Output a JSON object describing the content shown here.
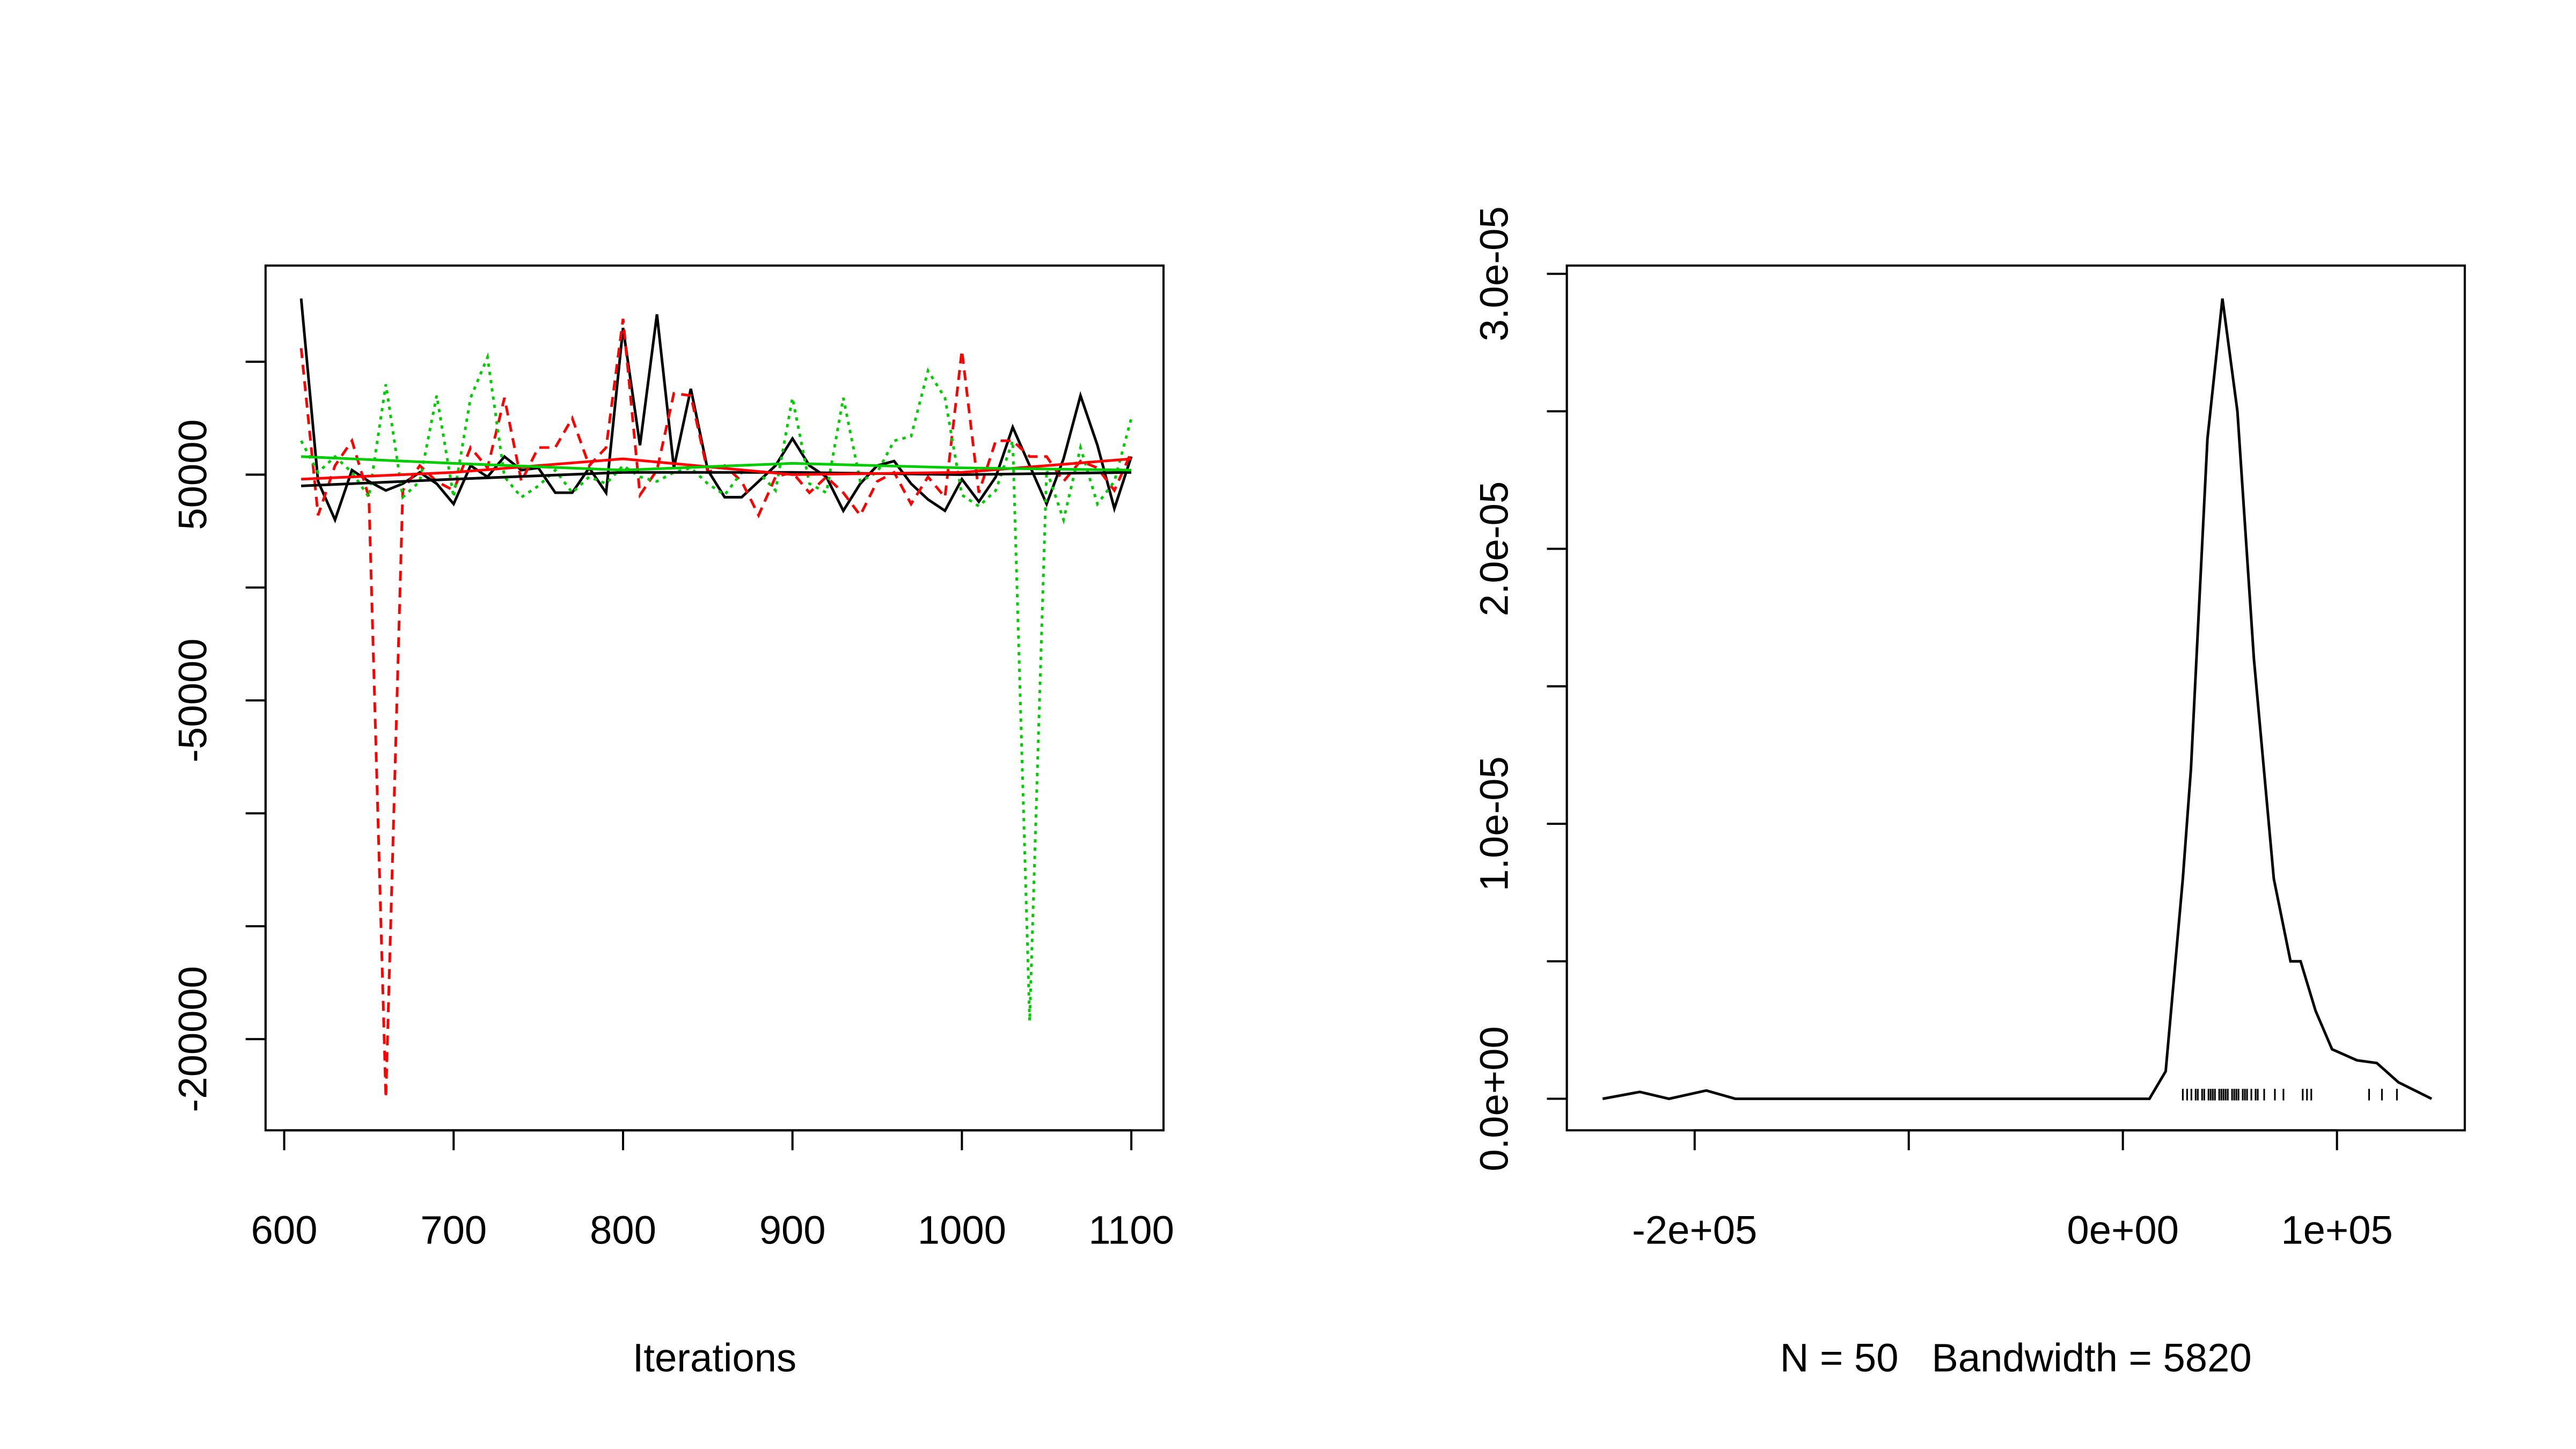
{
  "chart_data": [
    {
      "type": "line",
      "xlabel": "Iterations",
      "x": [
        610,
        620,
        630,
        640,
        650,
        660,
        670,
        680,
        690,
        700,
        710,
        720,
        730,
        740,
        750,
        760,
        770,
        780,
        790,
        800,
        810,
        820,
        830,
        840,
        850,
        860,
        870,
        880,
        890,
        900,
        910,
        920,
        930,
        940,
        950,
        960,
        970,
        980,
        990,
        1000,
        1010,
        1020,
        1030,
        1040,
        1050,
        1060,
        1070,
        1080,
        1090,
        1100
      ],
      "xlim": [
        589,
        1119
      ],
      "xticks": [
        600,
        700,
        800,
        900,
        1000,
        1100
      ],
      "ylim": [
        -240400,
        142600
      ],
      "yticks": [
        {
          "value": 100000,
          "label": null
        },
        50000,
        {
          "value": 0,
          "label": null
        },
        -50000,
        {
          "value": -100000,
          "label": null
        },
        {
          "value": -150000,
          "label": null
        },
        -200000
      ],
      "series": [
        {
          "color": "#000000",
          "linestyle": "solid",
          "values": [
            128000,
            47000,
            30000,
            52000,
            47000,
            43000,
            46000,
            51000,
            46000,
            37000,
            54000,
            49000,
            58000,
            52000,
            53000,
            42000,
            42000,
            53000,
            42000,
            115000,
            63000,
            121000,
            53000,
            88000,
            52000,
            40000,
            40000,
            47000,
            54000,
            66000,
            54000,
            49000,
            34000,
            46000,
            54000,
            56000,
            46000,
            39000,
            34000,
            48000,
            38000,
            49000,
            71000,
            54000,
            37000,
            57000,
            85000,
            63000,
            35000,
            58000
          ]
        },
        {
          "color": "#ff0000",
          "linestyle": "dashed",
          "values": [
            106000,
            32000,
            54000,
            65000,
            40000,
            -226000,
            43000,
            54000,
            47000,
            43000,
            62000,
            53000,
            84000,
            47000,
            62000,
            62000,
            75000,
            54000,
            62000,
            119000,
            41000,
            52000,
            86000,
            85000,
            51000,
            54000,
            47000,
            32000,
            49000,
            51000,
            42000,
            49000,
            42000,
            32000,
            47000,
            51000,
            37000,
            49000,
            40000,
            105000,
            42000,
            65000,
            65000,
            58000,
            58000,
            47000,
            56000,
            53000,
            43000,
            60000
          ]
        },
        {
          "color": "#00cd00",
          "linestyle": "dotted",
          "values": [
            65000,
            51000,
            58000,
            51000,
            40000,
            90000,
            40000,
            47000,
            85000,
            40000,
            84000,
            102000,
            49000,
            40000,
            45000,
            52000,
            42000,
            49000,
            46000,
            54000,
            49000,
            47000,
            51000,
            53000,
            46000,
            41000,
            51000,
            51000,
            43000,
            84000,
            46000,
            42000,
            84000,
            47000,
            51000,
            65000,
            67000,
            96000,
            84000,
            41000,
            36000,
            43000,
            65000,
            -192000,
            52000,
            30000,
            62000,
            37000,
            47000,
            75000
          ]
        },
        {
          "color": "#000000",
          "linestyle": "solid",
          "x": [
            610,
            700,
            800,
            900,
            1000,
            1100
          ],
          "values": [
            45000,
            48000,
            51000,
            51000,
            50000,
            51000
          ]
        },
        {
          "color": "#ff0000",
          "linestyle": "solid",
          "x": [
            610,
            700,
            800,
            900,
            1000,
            1100
          ],
          "values": [
            48000,
            51000,
            57000,
            50000,
            51000,
            57000
          ]
        },
        {
          "color": "#00cd00",
          "linestyle": "solid",
          "x": [
            610,
            700,
            800,
            900,
            1000,
            1100
          ],
          "values": [
            58000,
            55000,
            52000,
            55000,
            53000,
            52000
          ]
        }
      ]
    },
    {
      "type": "density",
      "xlabel": "N = 50   Bandwidth = 5820",
      "x": [
        -243000,
        -225600,
        -212000,
        -194600,
        -181000,
        12400,
        20000,
        28000,
        31800,
        39500,
        46500,
        53500,
        61200,
        70500,
        78300,
        83000,
        90000,
        97700,
        109300,
        118600,
        128700,
        144200
      ],
      "values": [
        0,
        2.5e-07,
        0,
        3e-07,
        0,
        0,
        1e-06,
        8e-06,
        1.2e-05,
        2.4e-05,
        2.91e-05,
        2.5e-05,
        1.6e-05,
        8e-06,
        5e-06,
        5e-06,
        3.2e-06,
        1.8e-06,
        1.4e-06,
        1.3e-06,
        6e-07,
        0
      ],
      "color": "#000000",
      "rug": [
        28000,
        30000,
        32000,
        34000,
        35000,
        37000,
        38000,
        40000,
        41000,
        42000,
        43000,
        45000,
        46000,
        47000,
        48000,
        49000,
        51000,
        52000,
        53000,
        54000,
        56000,
        57000,
        58000,
        60000,
        62000,
        63000,
        66000,
        71000,
        75000,
        84000,
        86000,
        88000,
        115000,
        121000,
        128000
      ],
      "xlim": [
        -259700,
        159700
      ],
      "xticks": [
        {
          "value": -200000,
          "label": "-2e+05"
        },
        {
          "value": -100000,
          "label": null
        },
        {
          "value": 0,
          "label": "0e+00"
        },
        {
          "value": 100000,
          "label": "1e+05"
        }
      ],
      "ylim": [
        -1.147e-06,
        3.03e-05
      ],
      "yticks": [
        {
          "value": 0,
          "label": "0.0e+00"
        },
        {
          "value": 5e-06,
          "label": null
        },
        {
          "value": 1e-05,
          "label": "1.0e-05"
        },
        {
          "value": 1.5e-05,
          "label": null
        },
        {
          "value": 2e-05,
          "label": "2.0e-05"
        },
        {
          "value": 2.5e-05,
          "label": null
        },
        {
          "value": 3e-05,
          "label": "3.0e-05"
        }
      ]
    }
  ]
}
